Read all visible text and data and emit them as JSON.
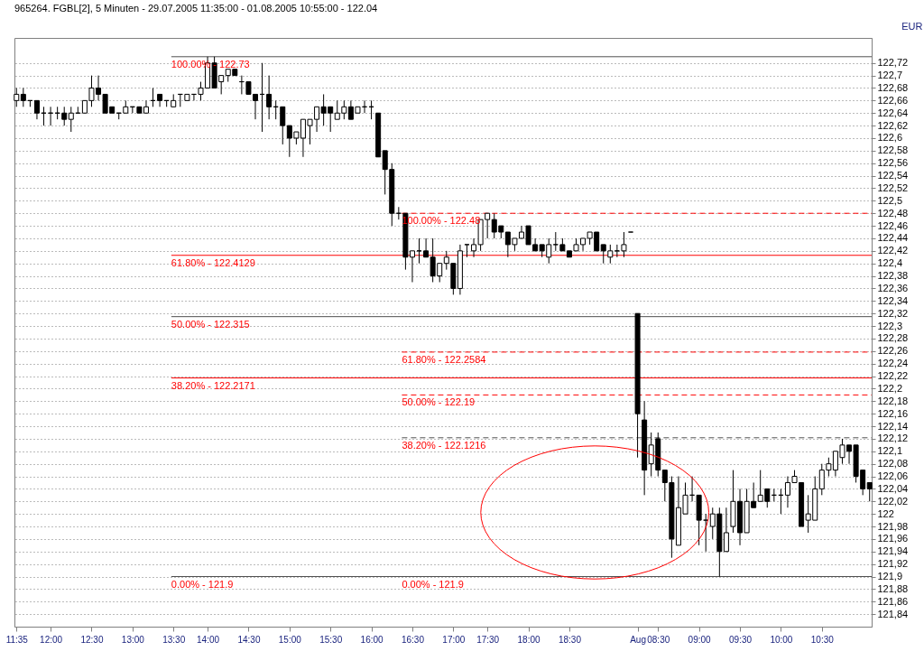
{
  "chart_data": {
    "type": "candlestick",
    "title": "965264. FGBL[2], 5 Minuten - 29.07.2005 11:35:00 - 01.08.2005 10:55:00 - 122.04",
    "ylabel": "EUR",
    "categories": [
      "11:35",
      null,
      null,
      null,
      null,
      "12:00",
      null,
      null,
      null,
      null,
      null,
      "12:30",
      null,
      null,
      null,
      null,
      null,
      "13:00",
      null,
      null,
      null,
      null,
      null,
      "13:30",
      null,
      null,
      null,
      null,
      "14:00",
      null,
      null,
      null,
      null,
      null,
      "14:30",
      null,
      null,
      null,
      null,
      null,
      "15:00",
      null,
      null,
      null,
      null,
      null,
      "15:30",
      null,
      null,
      null,
      null,
      null,
      "16:00",
      null,
      null,
      null,
      null,
      null,
      "16:30",
      null,
      null,
      null,
      null,
      null,
      "17:00",
      null,
      null,
      null,
      null,
      "17:30",
      null,
      null,
      null,
      null,
      null,
      "18:00",
      null,
      null,
      null,
      null,
      null,
      "18:30",
      null,
      null,
      null,
      null,
      null,
      null,
      null,
      null,
      null,
      "Aug",
      null,
      null,
      "08:30",
      null,
      null,
      null,
      null,
      null,
      "09:00",
      null,
      null,
      null,
      null,
      null,
      "09:30",
      null,
      null,
      null,
      null,
      null,
      "10:00",
      null,
      null,
      null,
      null,
      null,
      "10:30",
      null,
      null,
      null,
      null,
      null,
      null,
      null
    ],
    "ohlc": [
      [
        122.66,
        122.68,
        122.65,
        122.67
      ],
      [
        122.67,
        122.68,
        122.65,
        122.66
      ],
      [
        122.66,
        122.66,
        122.65,
        122.66
      ],
      [
        122.66,
        122.66,
        122.63,
        122.64
      ],
      [
        122.64,
        122.65,
        122.62,
        122.64
      ],
      [
        122.64,
        122.65,
        122.62,
        122.64
      ],
      [
        122.64,
        122.65,
        122.63,
        122.64
      ],
      [
        122.64,
        122.65,
        122.62,
        122.63
      ],
      [
        122.63,
        122.65,
        122.61,
        122.64
      ],
      [
        122.64,
        122.65,
        122.64,
        122.64
      ],
      [
        122.64,
        122.66,
        122.64,
        122.66
      ],
      [
        122.66,
        122.7,
        122.65,
        122.68
      ],
      [
        122.68,
        122.7,
        122.66,
        122.67
      ],
      [
        122.67,
        122.67,
        122.64,
        122.64
      ],
      [
        122.65,
        122.65,
        122.64,
        122.64
      ],
      [
        122.64,
        122.64,
        122.63,
        122.64
      ],
      [
        122.64,
        122.66,
        122.64,
        122.65
      ],
      [
        122.65,
        122.65,
        122.64,
        122.65
      ],
      [
        122.65,
        122.65,
        122.64,
        122.64
      ],
      [
        122.64,
        122.66,
        122.64,
        122.65
      ],
      [
        122.66,
        122.68,
        122.65,
        122.66
      ],
      [
        122.67,
        122.67,
        122.65,
        122.66
      ],
      [
        122.66,
        122.66,
        122.65,
        122.66
      ],
      [
        122.65,
        122.67,
        122.65,
        122.66
      ],
      [
        122.67,
        122.67,
        122.65,
        122.67
      ],
      [
        122.66,
        122.67,
        122.66,
        122.67
      ],
      [
        122.67,
        122.67,
        122.66,
        122.67
      ],
      [
        122.67,
        122.69,
        122.66,
        122.68
      ],
      [
        122.68,
        122.73,
        122.68,
        122.72
      ],
      [
        122.72,
        122.73,
        122.68,
        122.68
      ],
      [
        122.69,
        122.7,
        122.67,
        122.7
      ],
      [
        122.7,
        122.71,
        122.69,
        122.71
      ],
      [
        122.71,
        122.71,
        122.7,
        122.7
      ],
      [
        122.69,
        122.7,
        122.67,
        122.69
      ],
      [
        122.69,
        122.69,
        122.67,
        122.67
      ],
      [
        122.67,
        122.67,
        122.63,
        122.66
      ],
      [
        122.67,
        122.72,
        122.61,
        122.67
      ],
      [
        122.67,
        122.7,
        122.63,
        122.65
      ],
      [
        122.65,
        122.66,
        122.63,
        122.65
      ],
      [
        122.65,
        122.65,
        122.59,
        122.62
      ],
      [
        122.62,
        122.62,
        122.57,
        122.6
      ],
      [
        122.6,
        122.61,
        122.59,
        122.61
      ],
      [
        122.6,
        122.63,
        122.57,
        122.63
      ],
      [
        122.62,
        122.63,
        122.59,
        122.63
      ],
      [
        122.63,
        122.65,
        122.61,
        122.65
      ],
      [
        122.65,
        122.67,
        122.62,
        122.64
      ],
      [
        122.65,
        122.65,
        122.61,
        122.64
      ],
      [
        122.63,
        122.66,
        122.63,
        122.64
      ],
      [
        122.64,
        122.66,
        122.63,
        122.65
      ],
      [
        122.65,
        122.66,
        122.63,
        122.63
      ],
      [
        122.64,
        122.65,
        122.64,
        122.65
      ],
      [
        122.65,
        122.66,
        122.64,
        122.65
      ],
      [
        122.65,
        122.66,
        122.63,
        122.65
      ],
      [
        122.64,
        122.64,
        122.57,
        122.57
      ],
      [
        122.58,
        122.58,
        122.51,
        122.55
      ],
      [
        122.55,
        122.56,
        122.46,
        122.48
      ],
      [
        122.48,
        122.49,
        122.47,
        122.48
      ],
      [
        122.48,
        122.48,
        122.39,
        122.41
      ],
      [
        122.41,
        122.42,
        122.37,
        122.42
      ],
      [
        122.42,
        122.44,
        122.4,
        122.42
      ],
      [
        122.42,
        122.44,
        122.41,
        122.41
      ],
      [
        122.41,
        122.44,
        122.37,
        122.38
      ],
      [
        122.38,
        122.4,
        122.37,
        122.4
      ],
      [
        122.4,
        122.42,
        122.39,
        122.41
      ],
      [
        122.4,
        122.4,
        122.35,
        122.36
      ],
      [
        122.36,
        122.43,
        122.35,
        122.42
      ],
      [
        122.43,
        122.43,
        122.41,
        122.43
      ],
      [
        122.42,
        122.44,
        122.41,
        122.43
      ],
      [
        122.43,
        122.47,
        122.42,
        122.47
      ],
      [
        122.47,
        122.48,
        122.44,
        122.48
      ],
      [
        122.47,
        122.48,
        122.44,
        122.45
      ],
      [
        122.46,
        122.46,
        122.44,
        122.45
      ],
      [
        122.45,
        122.45,
        122.41,
        122.43
      ],
      [
        122.43,
        122.44,
        122.42,
        122.44
      ],
      [
        122.44,
        122.46,
        122.44,
        122.45
      ],
      [
        122.46,
        122.46,
        122.43,
        122.43
      ],
      [
        122.43,
        122.44,
        122.42,
        122.42
      ],
      [
        122.43,
        122.43,
        122.41,
        122.42
      ],
      [
        122.41,
        122.44,
        122.4,
        122.43
      ],
      [
        122.43,
        122.45,
        122.42,
        122.43
      ],
      [
        122.43,
        122.44,
        122.42,
        122.42
      ],
      [
        122.42,
        122.42,
        122.41,
        122.41
      ],
      [
        122.42,
        122.44,
        122.42,
        122.43
      ],
      [
        122.43,
        122.44,
        122.42,
        122.44
      ],
      [
        122.44,
        122.45,
        122.43,
        122.45
      ],
      [
        122.45,
        122.45,
        122.42,
        122.42
      ],
      [
        122.43,
        122.43,
        122.4,
        122.42
      ],
      [
        122.41,
        122.43,
        122.4,
        122.42
      ],
      [
        122.42,
        122.43,
        122.41,
        122.42
      ],
      [
        122.42,
        122.45,
        122.41,
        122.43
      ],
      [
        122.45,
        122.45,
        122.45,
        122.45
      ],
      [
        122.32,
        122.32,
        122.09,
        122.16
      ],
      [
        122.15,
        122.18,
        122.03,
        122.07
      ],
      [
        122.08,
        122.13,
        122.06,
        122.11
      ],
      [
        122.12,
        122.13,
        122.06,
        122.07
      ],
      [
        122.07,
        122.07,
        122.02,
        122.05
      ],
      [
        122.05,
        122.06,
        121.93,
        121.96
      ],
      [
        121.95,
        122.06,
        121.95,
        122.01
      ],
      [
        122.0,
        122.05,
        122.0,
        122.03
      ],
      [
        122.03,
        122.06,
        122.02,
        122.03
      ],
      [
        122.03,
        122.03,
        121.95,
        121.99
      ],
      [
        121.99,
        122.0,
        121.94,
        121.99
      ],
      [
        121.98,
        122.01,
        121.96,
        122.0
      ],
      [
        122.0,
        122.01,
        121.9,
        121.94
      ],
      [
        121.94,
        122.01,
        121.94,
        121.97
      ],
      [
        121.98,
        122.07,
        121.97,
        122.02
      ],
      [
        122.02,
        122.04,
        121.95,
        121.97
      ],
      [
        121.97,
        122.04,
        121.97,
        122.02
      ],
      [
        122.02,
        122.05,
        122.01,
        122.01
      ],
      [
        122.02,
        122.07,
        122.02,
        122.03
      ],
      [
        122.04,
        122.04,
        122.01,
        122.02
      ],
      [
        122.03,
        122.04,
        122.02,
        122.03
      ],
      [
        122.03,
        122.04,
        122.0,
        122.03
      ],
      [
        122.03,
        122.06,
        122.01,
        122.05
      ],
      [
        122.05,
        122.07,
        122.05,
        122.06
      ],
      [
        122.05,
        122.05,
        121.98,
        121.98
      ],
      [
        121.99,
        122.03,
        121.97,
        122.0
      ],
      [
        121.99,
        122.06,
        121.99,
        122.04
      ],
      [
        122.04,
        122.08,
        122.03,
        122.07
      ],
      [
        122.07,
        122.09,
        122.06,
        122.08
      ],
      [
        122.07,
        122.1,
        122.06,
        122.1
      ],
      [
        122.09,
        122.12,
        122.08,
        122.11
      ],
      [
        122.11,
        122.11,
        122.08,
        122.1
      ],
      [
        122.11,
        122.11,
        122.05,
        122.06
      ],
      [
        122.07,
        122.07,
        122.03,
        122.04
      ],
      [
        122.05,
        122.05,
        122.02,
        122.04
      ]
    ],
    "ylim": [
      121.82,
      122.76
    ],
    "yticks": [
      {
        "value": 121.84,
        "label": "121,84"
      },
      {
        "value": 121.86,
        "label": "121,86"
      },
      {
        "value": 121.88,
        "label": "121,88"
      },
      {
        "value": 121.9,
        "label": "121,9"
      },
      {
        "value": 121.92,
        "label": "121,92"
      },
      {
        "value": 121.94,
        "label": "121,94"
      },
      {
        "value": 121.96,
        "label": "121,96"
      },
      {
        "value": 121.98,
        "label": "121,98"
      },
      122,
      {
        "value": 122.02,
        "label": "122,02"
      },
      {
        "value": 122.04,
        "label": "122,04"
      },
      {
        "value": 122.06,
        "label": "122,06"
      },
      {
        "value": 122.08,
        "label": "122,08"
      },
      {
        "value": 122.1,
        "label": "122,1"
      },
      {
        "value": 122.12,
        "label": "122,12"
      },
      {
        "value": 122.14,
        "label": "122,14"
      },
      {
        "value": 122.16,
        "label": "122,16"
      },
      {
        "value": 122.18,
        "label": "122,18"
      },
      {
        "value": 122.2,
        "label": "122,2"
      },
      {
        "value": 122.22,
        "label": "122,22"
      },
      {
        "value": 122.24,
        "label": "122,24"
      },
      {
        "value": 122.26,
        "label": "122,26"
      },
      {
        "value": 122.28,
        "label": "122,28"
      },
      {
        "value": 122.3,
        "label": "122,3"
      },
      {
        "value": 122.32,
        "label": "122,32"
      },
      {
        "value": 122.34,
        "label": "122,34"
      },
      {
        "value": 122.36,
        "label": "122,36"
      },
      {
        "value": 122.38,
        "label": "122,38"
      },
      {
        "value": 122.4,
        "label": "122,4"
      },
      {
        "value": 122.42,
        "label": "122,42"
      },
      {
        "value": 122.44,
        "label": "122,44"
      },
      {
        "value": 122.46,
        "label": "122,46"
      },
      {
        "value": 122.48,
        "label": "122,48"
      },
      {
        "value": 122.5,
        "label": "122,5"
      },
      {
        "value": 122.52,
        "label": "122,52"
      },
      {
        "value": 122.54,
        "label": "122,54"
      },
      {
        "value": 122.56,
        "label": "122,56"
      },
      {
        "value": 122.58,
        "label": "122,58"
      },
      {
        "value": 122.6,
        "label": "122,6"
      },
      {
        "value": 122.62,
        "label": "122,62"
      },
      {
        "value": 122.64,
        "label": "122,64"
      },
      {
        "value": 122.66,
        "label": "122,66"
      },
      {
        "value": 122.68,
        "label": "122,68"
      },
      {
        "value": 122.7,
        "label": "122,7"
      },
      {
        "value": 122.72,
        "label": "122,72"
      }
    ],
    "ref_lines": [
      {
        "axis": "y",
        "value": 122.73,
        "color": "#505050",
        "line_style": "solid"
      },
      {
        "axis": "y",
        "value": 122.4129,
        "color": "#ff0000",
        "line_style": "solid"
      },
      {
        "axis": "y",
        "value": 122.315,
        "color": "#505050",
        "line_style": "solid"
      },
      {
        "axis": "y",
        "value": 122.2171,
        "color": "#ff0000",
        "line_style": "solid"
      },
      {
        "axis": "y",
        "value": 121.9,
        "color": "#505050",
        "line_style": "solid"
      },
      {
        "axis": "y",
        "value": 122.48,
        "color": "#ff0000",
        "line_style": "dashed"
      },
      {
        "axis": "y",
        "value": 122.2584,
        "color": "#ff0000",
        "line_style": "dashed"
      },
      {
        "axis": "y",
        "value": 122.19,
        "color": "#ff0000",
        "line_style": "dashed"
      },
      {
        "axis": "y",
        "value": 122.1216,
        "color": "#505050",
        "line_style": "dashed"
      }
    ],
    "annotations": [
      {
        "text": "100.00% - 122.73",
        "y": 122.73
      },
      {
        "text": "61.80% - 122.4129",
        "y": 122.4129
      },
      {
        "text": "50.00% - 122.315",
        "y": 122.315
      },
      {
        "text": "38.20% - 122.2171",
        "y": 122.2171
      },
      {
        "text": "0.00% - 121.9",
        "y": 121.9
      },
      {
        "text": "100.00% - 122.48",
        "y": 122.48
      },
      {
        "text": "61.80% - 122.2584",
        "y": 122.2584
      },
      {
        "text": "50.00% - 122.19",
        "y": 122.19
      },
      {
        "text": "38.20% - 122.1216",
        "y": 122.1216
      },
      {
        "text": "0.00% - 121.9",
        "y": 121.9
      }
    ],
    "grid": "y"
  }
}
